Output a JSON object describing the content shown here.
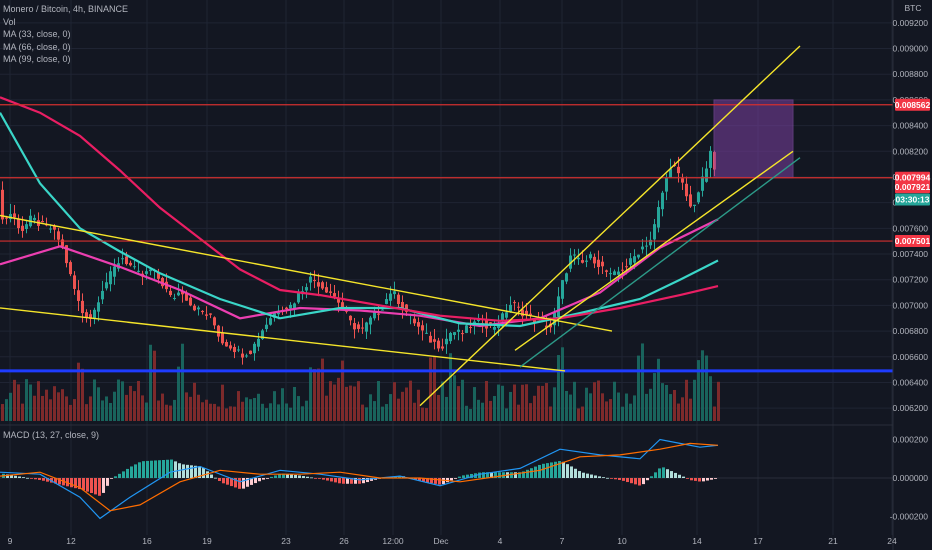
{
  "legend": {
    "symbol": "Monero / Bitcoin, 4h, BINANCE",
    "vol": "Vol",
    "ma1": "MA (33, close, 0)",
    "ma2": "MA (66, close, 0)",
    "ma3": "MA (99, close, 0)"
  },
  "macd_label": "MACD (13, 27, close, 9)",
  "currency": "BTC",
  "chart_data": {
    "type": "candlestick",
    "ylim": [
      0.0061,
      0.0093
    ],
    "y_ticks": [
      "0.009200",
      "0.009000",
      "0.008800",
      "0.008600",
      "0.008400",
      "0.008200",
      "0.008000",
      "0.007800",
      "0.007600",
      "0.007400",
      "0.007200",
      "0.007000",
      "0.006800",
      "0.006600",
      "0.006400",
      "0.006200"
    ],
    "y_tick_values": [
      0.0092,
      0.009,
      0.0088,
      0.0086,
      0.0084,
      0.0082,
      0.008,
      0.0078,
      0.0076,
      0.0074,
      0.0072,
      0.007,
      0.0068,
      0.0066,
      0.0064,
      0.0062
    ],
    "x_ticks": [
      "9",
      "12",
      "16",
      "19",
      "23",
      "26",
      "12:00",
      "Dec",
      "4",
      "7",
      "10",
      "14",
      "17",
      "21",
      "24"
    ],
    "macd_ticks": [
      "0.000200",
      "0.000000",
      "-0.000200"
    ],
    "macd_tick_values": [
      0.0002,
      0,
      -0.0002
    ],
    "price_tags": [
      {
        "label": "0.008562",
        "value": 0.008562,
        "color": "#f23645"
      },
      {
        "label": "0.007994",
        "value": 0.007994,
        "color": "#f23645"
      },
      {
        "label": "0.007921",
        "value": 0.007921,
        "color": "#f23645"
      },
      {
        "label": "03:30:13",
        "value": 0.007825,
        "color": "#26a69a"
      },
      {
        "label": "0.007501",
        "value": 0.007501,
        "color": "#f23645"
      }
    ],
    "horizontal_lines": [
      {
        "value": 0.008562,
        "color": "#d32f2f"
      },
      {
        "value": 0.007994,
        "color": "#d32f2f"
      },
      {
        "value": 0.007501,
        "color": "#d32f2f"
      },
      {
        "value": 0.00649,
        "color": "#1e3cff"
      }
    ],
    "close_path": [
      [
        0,
        0.00766
      ],
      [
        10,
        0.00772
      ],
      [
        20,
        0.00758
      ],
      [
        30,
        0.00768
      ],
      [
        40,
        0.00762
      ],
      [
        50,
        0.0076
      ],
      [
        60,
        0.00748
      ],
      [
        70,
        0.0072
      ],
      [
        80,
        0.00695
      ],
      [
        90,
        0.0069
      ],
      [
        100,
        0.00712
      ],
      [
        110,
        0.00725
      ],
      [
        120,
        0.00738
      ],
      [
        130,
        0.0073
      ],
      [
        140,
        0.00722
      ],
      [
        150,
        0.00728
      ],
      [
        160,
        0.00718
      ],
      [
        170,
        0.00705
      ],
      [
        180,
        0.00712
      ],
      [
        190,
        0.007
      ],
      [
        200,
        0.00695
      ],
      [
        210,
        0.0069
      ],
      [
        220,
        0.00672
      ],
      [
        230,
        0.00668
      ],
      [
        240,
        0.00662
      ],
      [
        250,
        0.00665
      ],
      [
        260,
        0.0068
      ],
      [
        270,
        0.00692
      ],
      [
        280,
        0.00698
      ],
      [
        290,
        0.007
      ],
      [
        300,
        0.00712
      ],
      [
        310,
        0.00722
      ],
      [
        320,
        0.00715
      ],
      [
        330,
        0.0071
      ],
      [
        340,
        0.007
      ],
      [
        350,
        0.00685
      ],
      [
        360,
        0.0068
      ],
      [
        370,
        0.0069
      ],
      [
        380,
        0.00698
      ],
      [
        390,
        0.00712
      ],
      [
        400,
        0.007
      ],
      [
        410,
        0.0069
      ],
      [
        420,
        0.0068
      ],
      [
        430,
        0.00672
      ],
      [
        440,
        0.00668
      ],
      [
        450,
        0.0068
      ],
      [
        460,
        0.00678
      ],
      [
        470,
        0.00685
      ],
      [
        480,
        0.00688
      ],
      [
        490,
        0.00682
      ],
      [
        500,
        0.0069
      ],
      [
        510,
        0.00702
      ],
      [
        520,
        0.00695
      ],
      [
        530,
        0.0069
      ],
      [
        540,
        0.00686
      ],
      [
        550,
        0.00683
      ],
      [
        560,
        0.00715
      ],
      [
        570,
        0.0074
      ],
      [
        580,
        0.00732
      ],
      [
        590,
        0.00738
      ],
      [
        600,
        0.0073
      ],
      [
        610,
        0.00722
      ],
      [
        620,
        0.00728
      ],
      [
        630,
        0.00735
      ],
      [
        640,
        0.00745
      ],
      [
        650,
        0.00752
      ],
      [
        660,
        0.00785
      ],
      [
        670,
        0.00812
      ],
      [
        680,
        0.00796
      ],
      [
        690,
        0.00774
      ],
      [
        700,
        0.00795
      ],
      [
        710,
        0.0082
      ],
      [
        716,
        0.00792
      ]
    ],
    "ma_lines": [
      {
        "name": "MA (33, close, 0)",
        "color": "#ec3fb1",
        "path": [
          [
            0,
            0.00732
          ],
          [
            60,
            0.00746
          ],
          [
            120,
            0.0073
          ],
          [
            180,
            0.00712
          ],
          [
            240,
            0.0069
          ],
          [
            300,
            0.00698
          ],
          [
            360,
            0.00696
          ],
          [
            420,
            0.00692
          ],
          [
            480,
            0.00684
          ],
          [
            540,
            0.0069
          ],
          [
            600,
            0.0071
          ],
          [
            660,
            0.00745
          ],
          [
            718,
            0.00767
          ]
        ]
      },
      {
        "name": "MA (66, close, 0)",
        "color": "#3ad6c8",
        "path": [
          [
            0,
            0.0085
          ],
          [
            40,
            0.00795
          ],
          [
            80,
            0.0076
          ],
          [
            120,
            0.00742
          ],
          [
            160,
            0.00725
          ],
          [
            220,
            0.00705
          ],
          [
            280,
            0.0069
          ],
          [
            340,
            0.00698
          ],
          [
            400,
            0.00698
          ],
          [
            460,
            0.00686
          ],
          [
            520,
            0.00684
          ],
          [
            580,
            0.00694
          ],
          [
            640,
            0.00705
          ],
          [
            680,
            0.0072
          ],
          [
            718,
            0.00735
          ]
        ]
      },
      {
        "name": "MA (99, close, 0)",
        "color": "#e91e63",
        "path": [
          [
            0,
            0.00862
          ],
          [
            40,
            0.0085
          ],
          [
            80,
            0.00832
          ],
          [
            120,
            0.00805
          ],
          [
            160,
            0.00776
          ],
          [
            200,
            0.00752
          ],
          [
            240,
            0.00728
          ],
          [
            280,
            0.00712
          ],
          [
            320,
            0.00708
          ],
          [
            380,
            0.007
          ],
          [
            440,
            0.00692
          ],
          [
            500,
            0.00688
          ],
          [
            560,
            0.0069
          ],
          [
            620,
            0.00698
          ],
          [
            680,
            0.00708
          ],
          [
            718,
            0.00715
          ]
        ]
      }
    ],
    "trend_lines": [
      {
        "color": "#f5e52a",
        "from": [
          0,
          0.0077
        ],
        "to": [
          612,
          0.0068
        ]
      },
      {
        "color": "#f5e52a",
        "from": [
          0,
          0.00698
        ],
        "to": [
          565,
          0.00649
        ]
      },
      {
        "color": "#f5e52a",
        "from": [
          420,
          0.00622
        ],
        "to": [
          800,
          0.00902
        ]
      },
      {
        "color": "#f5e52a",
        "from": [
          515,
          0.00665
        ],
        "to": [
          793,
          0.0082
        ]
      },
      {
        "color": "#2c9a88",
        "from": [
          520,
          0.00652
        ],
        "to": [
          800,
          0.00815
        ]
      }
    ],
    "target_box": {
      "x0": 714,
      "x1": 793,
      "y0": 0.0086,
      "y1": 0.007994,
      "color": "#7b3fa0"
    },
    "macd_path": [
      [
        0,
        3e-05
      ],
      [
        40,
        2e-05
      ],
      [
        80,
        -0.0001
      ],
      [
        100,
        -0.00021
      ],
      [
        130,
        -0.0001
      ],
      [
        170,
        3e-05
      ],
      [
        200,
        6e-05
      ],
      [
        240,
        -2e-05
      ],
      [
        280,
        4e-05
      ],
      [
        320,
        2e-05
      ],
      [
        360,
        -1e-05
      ],
      [
        400,
        1e-05
      ],
      [
        440,
        -4e-05
      ],
      [
        480,
        2e-05
      ],
      [
        520,
        5e-05
      ],
      [
        560,
        0.00015
      ],
      [
        600,
        0.00012
      ],
      [
        640,
        0.0001
      ],
      [
        660,
        0.0002
      ],
      [
        680,
        0.00018
      ],
      [
        700,
        0.00016
      ],
      [
        718,
        0.00017
      ]
    ],
    "signal_path": [
      [
        0,
        1e-05
      ],
      [
        40,
        3e-05
      ],
      [
        80,
        -5e-05
      ],
      [
        110,
        -0.00017
      ],
      [
        140,
        -0.00014
      ],
      [
        180,
        -2e-05
      ],
      [
        220,
        4e-05
      ],
      [
        260,
        2e-05
      ],
      [
        300,
        2e-05
      ],
      [
        340,
        3e-05
      ],
      [
        380,
        0.0
      ],
      [
        420,
        0.0
      ],
      [
        460,
        -2e-05
      ],
      [
        500,
        1e-05
      ],
      [
        540,
        4e-05
      ],
      [
        580,
        0.00011
      ],
      [
        620,
        0.00012
      ],
      [
        660,
        0.00015
      ],
      [
        690,
        0.00018
      ],
      [
        718,
        0.00017
      ]
    ]
  }
}
